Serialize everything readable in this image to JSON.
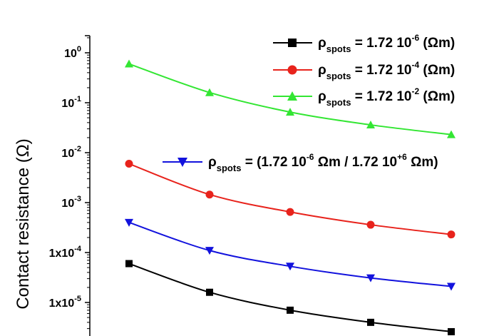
{
  "chart_data": {
    "type": "line",
    "title": "",
    "xlabel": "",
    "ylabel": "Contact resistance (Ω)",
    "y_scale": "log",
    "ylim": [
      2.5e-06,
      1.6
    ],
    "x": [
      1,
      2,
      3,
      4,
      5
    ],
    "y_ticks": [
      {
        "value": 1,
        "base": "10",
        "exp": "0"
      },
      {
        "value": 0.1,
        "base": "10",
        "exp": "-1"
      },
      {
        "value": 0.01,
        "base": "10",
        "exp": "-2"
      },
      {
        "value": 0.001,
        "base": "10",
        "exp": "-3"
      },
      {
        "value": 0.0001,
        "base": "1x10",
        "exp": "-4"
      },
      {
        "value": 1e-05,
        "base": "1x10",
        "exp": "-5"
      }
    ],
    "grid": false,
    "series": [
      {
        "color": "#000000",
        "marker": "square",
        "values": [
          6e-05,
          1.6e-05,
          7e-06,
          4e-06,
          2.6e-06
        ]
      },
      {
        "color": "#e8231c",
        "marker": "circle",
        "values": [
          0.006,
          0.00145,
          0.00065,
          0.00036,
          0.00023
        ]
      },
      {
        "color": "#33e633",
        "marker": "triangle-up",
        "values": [
          0.6,
          0.16,
          0.065,
          0.036,
          0.023
        ]
      },
      {
        "color": "#1212dd",
        "marker": "triangle-down",
        "values": [
          0.0004,
          0.00011,
          5.3e-05,
          3.1e-05,
          2.1e-05
        ]
      }
    ],
    "legend": [
      {
        "series_index": 0,
        "rho": "ρ",
        "sub": "spots",
        "text": " = 1.72 10",
        "sup": "-6",
        "tail": " (Ωm)"
      },
      {
        "series_index": 1,
        "rho": "ρ",
        "sub": "spots",
        "text": " = 1.72 10",
        "sup": "-4",
        "tail": " (Ωm)"
      },
      {
        "series_index": 2,
        "rho": "ρ",
        "sub": "spots",
        "text": " = 1.72 10",
        "sup": "-2",
        "tail": " (Ωm)"
      }
    ],
    "annotation": {
      "series_index": 3,
      "rho": "ρ",
      "sub": "spots",
      "text1": " = (1.72 10",
      "sup1": "-6",
      "text2": " Ωm / 1.72 10",
      "sup2": "+6",
      "text3": " Ωm)"
    },
    "legend_position": "top-right"
  }
}
